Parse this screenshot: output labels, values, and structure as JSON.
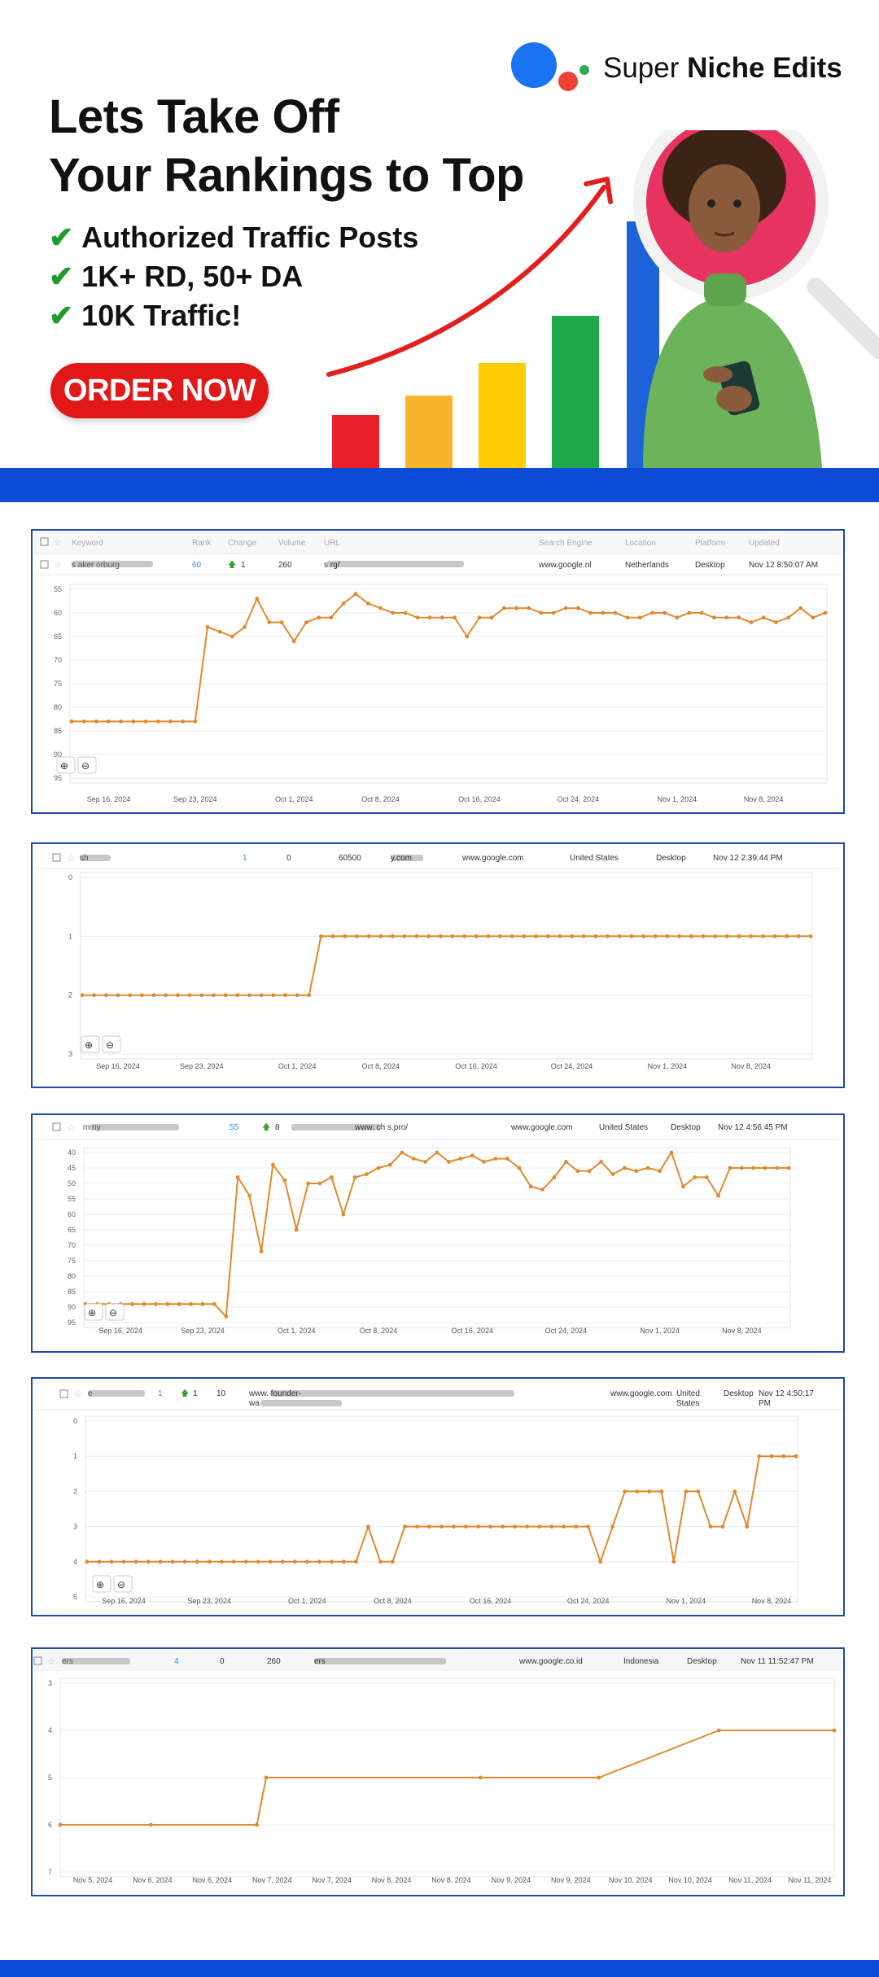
{
  "brand": {
    "name_light": "Super",
    "name_bold": "Niche Edits"
  },
  "hero": {
    "headline_line1": "Lets Take Off",
    "headline_line2": "Your Rankings to Top",
    "checks": [
      "Authorized Traffic Posts",
      "1K+ RD, 50+ DA",
      "10K Traffic!"
    ],
    "check_icon": "checkmark-icon",
    "cta_label": "ORDER NOW",
    "growth_bar_colors": [
      "#e8202a",
      "#f7b52c",
      "#ffcc00",
      "#1ea84a",
      "#1d62d8"
    ],
    "arrow_color": "#e02020"
  },
  "colors": {
    "accent_blue": "#0a4ad4",
    "panel_border": "#1f4aa5",
    "line_orange": "#e08a30",
    "rank_blue": "#2f8fe0",
    "up_green": "#3a9d2e"
  },
  "panels": [
    {
      "header": [
        "",
        "Keyword",
        "Rank",
        "Change",
        "Volume",
        "URL",
        "Search Engine",
        "Location",
        "Platform",
        "Updated"
      ],
      "row": {
        "keyword": "s          aker    orburg",
        "rank": "60",
        "change": "1",
        "volume": "260",
        "url": "s                              rg/",
        "engine": "www.google.nl",
        "location": "Netherlands",
        "platform": "Desktop",
        "updated": "Nov 12 8:50:07 AM"
      },
      "chart_data": {
        "type": "line",
        "y_ticks": [
          "55",
          "60",
          "65",
          "70",
          "75",
          "80",
          "85",
          "90",
          "95"
        ],
        "ylim": [
          55,
          95
        ],
        "y_reversed": true,
        "x_ticks": [
          "Sep 16, 2024",
          "Sep 23, 2024",
          "Oct 1, 2024",
          "Oct 8, 2024",
          "Oct 16, 2024",
          "Oct 24, 2024",
          "Nov 1, 2024",
          "Nov 8, 2024"
        ],
        "x_tick_idx": [
          3,
          10,
          18,
          25,
          33,
          41,
          49,
          56
        ],
        "values": [
          83,
          83,
          83,
          83,
          83,
          83,
          83,
          83,
          83,
          83,
          83,
          63,
          64,
          65,
          63,
          57,
          62,
          62,
          66,
          62,
          61,
          61,
          58,
          56,
          58,
          59,
          60,
          60,
          61,
          61,
          61,
          61,
          65,
          61,
          61,
          59,
          59,
          59,
          60,
          60,
          59,
          59,
          60,
          60,
          60,
          61,
          61,
          60,
          60,
          61,
          60,
          60,
          61,
          61,
          61,
          62,
          61,
          62,
          61,
          59,
          61,
          60
        ],
        "grid": true,
        "legend": "none",
        "zoom_icons": [
          "zoom-in-icon",
          "zoom-out-icon"
        ]
      }
    },
    {
      "row": {
        "keyword": "  sh  ",
        "rank": "1",
        "change": "0",
        "volume": "60500",
        "url": "       y.com",
        "engine": "www.google.com",
        "location": "United States",
        "platform": "Desktop",
        "updated": "Nov 12 2:39:44 PM"
      },
      "chart_data": {
        "type": "line",
        "y_ticks": [
          "0",
          "1",
          "2",
          "3"
        ],
        "ylim": [
          0,
          3
        ],
        "y_reversed": true,
        "x_ticks": [
          "Sep 16, 2024",
          "Sep 23, 2024",
          "Oct 1, 2024",
          "Oct 8, 2024",
          "Oct 16, 2024",
          "Oct 24, 2024",
          "Nov 1, 2024",
          "Nov 8, 2024"
        ],
        "x_tick_idx": [
          3,
          10,
          18,
          25,
          33,
          41,
          49,
          56
        ],
        "values": [
          2,
          2,
          2,
          2,
          2,
          2,
          2,
          2,
          2,
          2,
          2,
          2,
          2,
          2,
          2,
          2,
          2,
          2,
          2,
          2,
          1,
          1,
          1,
          1,
          1,
          1,
          1,
          1,
          1,
          1,
          1,
          1,
          1,
          1,
          1,
          1,
          1,
          1,
          1,
          1,
          1,
          1,
          1,
          1,
          1,
          1,
          1,
          1,
          1,
          1,
          1,
          1,
          1,
          1,
          1,
          1,
          1,
          1,
          1,
          1,
          1,
          1
        ],
        "grid": true,
        "legend": "none",
        "zoom_icons": [
          "zoom-in-icon",
          "zoom-out-icon"
        ]
      }
    },
    {
      "row": {
        "keyword": "m                      ny",
        "rank": "55",
        "change": "8",
        "volume": "",
        "url": "www.         ch          s.pro/",
        "engine": "www.google.com",
        "location": "United States",
        "platform": "Desktop",
        "updated": "Nov 12 4:56:45 PM"
      },
      "chart_data": {
        "type": "line",
        "y_ticks": [
          "40",
          "45",
          "50",
          "55",
          "60",
          "65",
          "70",
          "75",
          "80",
          "85",
          "90",
          "95"
        ],
        "ylim": [
          40,
          95
        ],
        "y_reversed": true,
        "x_ticks": [
          "Sep 16, 2024",
          "Sep 23, 2024",
          "Oct 1, 2024",
          "Oct 8, 2024",
          "Oct 16, 2024",
          "Oct 24, 2024",
          "Nov 1, 2024",
          "Nov 8, 2024"
        ],
        "x_tick_idx": [
          3,
          10,
          18,
          25,
          33,
          41,
          49,
          56
        ],
        "values": [
          89,
          89,
          89,
          89,
          89,
          89,
          89,
          89,
          89,
          89,
          89,
          89,
          93,
          48,
          54,
          72,
          44,
          49,
          65,
          50,
          50,
          48,
          60,
          48,
          47,
          45,
          44,
          40,
          42,
          43,
          40,
          43,
          42,
          41,
          43,
          42,
          42,
          45,
          51,
          52,
          48,
          43,
          46,
          46,
          43,
          47,
          45,
          46,
          45,
          46,
          40,
          51,
          48,
          48,
          54,
          45,
          45,
          45,
          45,
          45,
          45
        ],
        "grid": true,
        "legend": "none",
        "zoom_icons": [
          "zoom-in-icon",
          "zoom-out-icon"
        ]
      }
    },
    {
      "row": {
        "keyword": "            e",
        "rank": "1",
        "change": "1",
        "volume": "10",
        "url": "www.                                             founder-",
        "url_line2": "wa          ",
        "engine": "www.google.com",
        "location": "United States",
        "platform": "Desktop",
        "updated": "Nov 12 4:50:17 PM"
      },
      "chart_data": {
        "type": "line",
        "y_ticks": [
          "0",
          "1",
          "2",
          "3",
          "4",
          "5"
        ],
        "ylim": [
          0,
          5
        ],
        "y_reversed": true,
        "x_ticks": [
          "Sep 16, 2024",
          "Sep 23, 2024",
          "Oct 1, 2024",
          "Oct 8, 2024",
          "Oct 16, 2024",
          "Oct 24, 2024",
          "Nov 1, 2024",
          "Nov 8, 2024"
        ],
        "x_tick_idx": [
          3,
          10,
          18,
          25,
          33,
          41,
          49,
          56
        ],
        "values": [
          4,
          4,
          4,
          4,
          4,
          4,
          4,
          4,
          4,
          4,
          4,
          4,
          4,
          4,
          4,
          4,
          4,
          4,
          4,
          4,
          4,
          4,
          4,
          3,
          4,
          4,
          3,
          3,
          3,
          3,
          3,
          3,
          3,
          3,
          3,
          3,
          3,
          3,
          3,
          3,
          3,
          3,
          4,
          3,
          2,
          2,
          2,
          2,
          4,
          2,
          2,
          3,
          3,
          2,
          3,
          1,
          1,
          1,
          1
        ],
        "grid": true,
        "legend": "none",
        "zoom_icons": [
          "zoom-in-icon",
          "zoom-out-icon"
        ]
      }
    },
    {
      "row": {
        "keyword": "                ers",
        "rank": "4",
        "change": "0",
        "volume": "260",
        "url": "                                 ers",
        "engine": "www.google.co.id",
        "location": "Indonesia",
        "platform": "Desktop",
        "updated": "Nov 11 11:52:47 PM"
      },
      "chart_data": {
        "type": "line",
        "y_ticks": [
          "3",
          "4",
          "5",
          "6",
          "7"
        ],
        "ylim": [
          3,
          7
        ],
        "y_reversed": true,
        "x_ticks": [
          "Nov 5, 2024",
          "Nov 6, 2024",
          "Nov 6, 2024",
          "Nov 7, 2024",
          "Nov 7, 2024",
          "Nov 8, 2024",
          "Nov 8, 2024",
          "Nov 9, 2024",
          "Nov 9, 2024",
          "Nov 10, 2024",
          "Nov 10, 2024",
          "Nov 11, 2024",
          "Nov 11, 2024"
        ],
        "points": [
          [
            0,
            6
          ],
          [
            0.117,
            6
          ],
          [
            0.254,
            6
          ],
          [
            0.266,
            5
          ],
          [
            0.543,
            5
          ],
          [
            0.696,
            5
          ],
          [
            0.851,
            4
          ],
          [
            1,
            4
          ]
        ],
        "grid": true,
        "legend": "none"
      }
    }
  ]
}
